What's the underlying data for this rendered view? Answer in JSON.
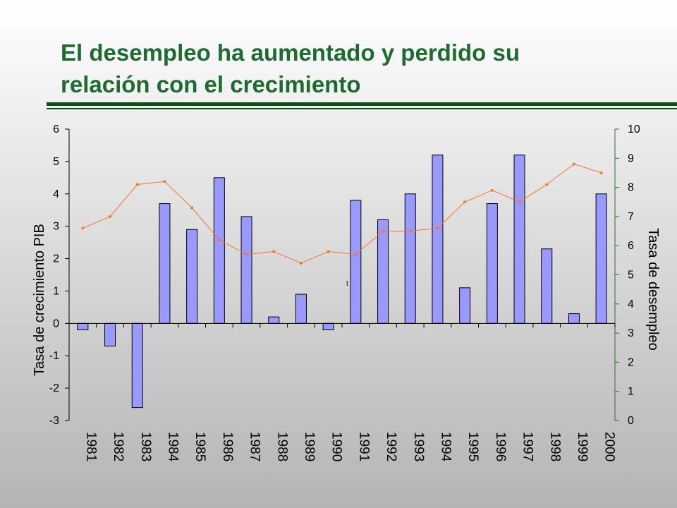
{
  "slide": {
    "title_line1": "El desempleo ha aumentado y perdido su",
    "title_line2": "relación con el crecimiento",
    "stray_mark": "t"
  },
  "colors": {
    "title": "#1e6b32",
    "rule": "#0d4d14",
    "bar_fill": "#9999ff",
    "bar_stroke": "#000000",
    "line": "#f07830",
    "axis_right": "#2f6b2f"
  },
  "chart_data": {
    "type": "bar",
    "categories": [
      "1981",
      "1982",
      "1983",
      "1984",
      "1985",
      "1986",
      "1987",
      "1988",
      "1989",
      "1990",
      "1991",
      "1992",
      "1993",
      "1994",
      "1995",
      "1996",
      "1997",
      "1998",
      "1999",
      "2000"
    ],
    "series": [
      {
        "axis": "left",
        "type": "bar",
        "values": [
          -0.2,
          -0.7,
          -2.6,
          3.7,
          2.9,
          4.5,
          3.3,
          0.2,
          0.9,
          -0.2,
          3.8,
          3.2,
          4.0,
          5.2,
          1.1,
          3.7,
          5.2,
          2.3,
          0.3,
          4.0
        ]
      },
      {
        "axis": "right",
        "type": "line",
        "values": [
          6.6,
          7.0,
          8.1,
          8.2,
          7.3,
          6.2,
          5.7,
          5.8,
          5.4,
          5.8,
          5.7,
          6.5,
          6.5,
          6.6,
          7.5,
          7.9,
          7.5,
          8.1,
          8.8,
          8.5
        ]
      }
    ],
    "ylabel": "Tasa de crecimiento PIB",
    "y2label": "Tasa de desempleo",
    "ylim": [
      -3,
      6
    ],
    "y2lim": [
      0,
      10
    ],
    "yticks": [
      "-3",
      "-2",
      "-1",
      "0",
      "1",
      "2",
      "3",
      "4",
      "5",
      "6"
    ],
    "y2ticks": [
      "0",
      "1",
      "2",
      "3",
      "4",
      "5",
      "6",
      "7",
      "8",
      "9",
      "10"
    ],
    "grid": false,
    "legend": "none"
  }
}
